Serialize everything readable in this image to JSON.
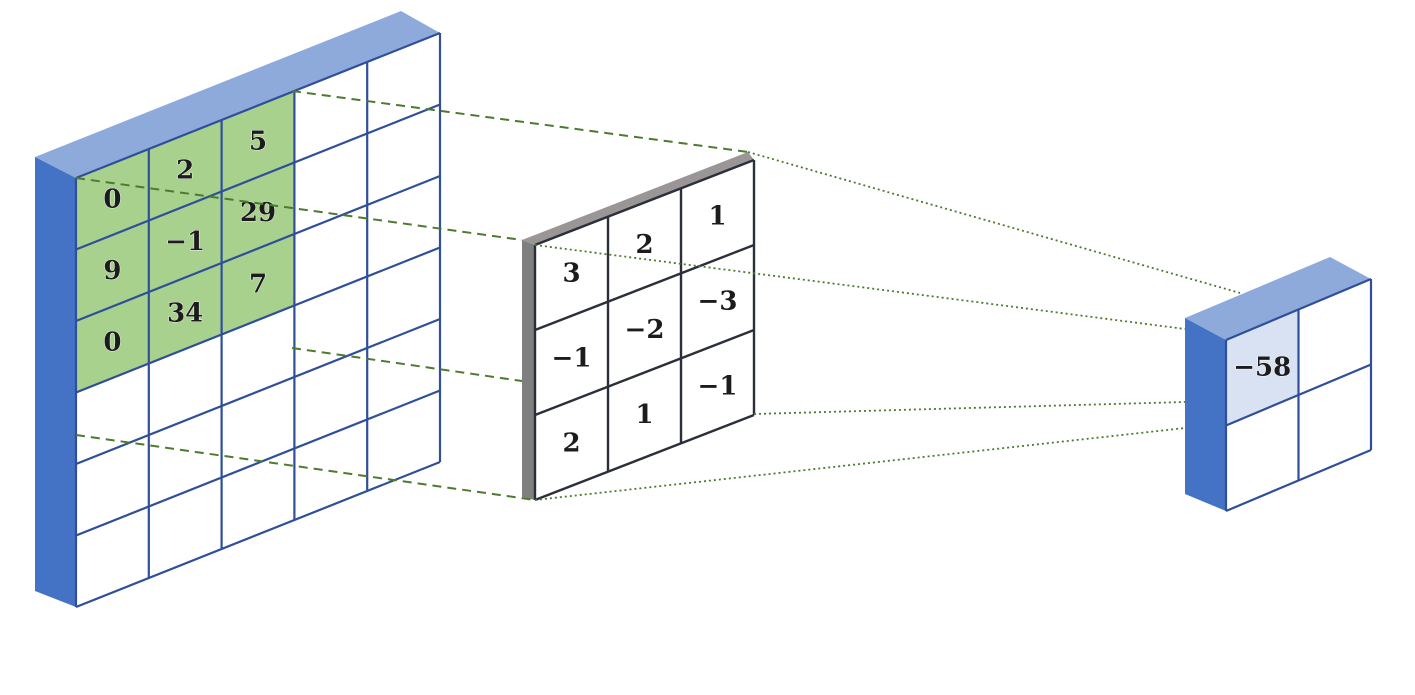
{
  "input_matrix": {
    "rows": 6,
    "cols": 5,
    "highlight_rows": 3,
    "highlight_cols": 3,
    "highlight_values": [
      [
        "0",
        "2",
        "5"
      ],
      [
        "9",
        "−1",
        "29"
      ],
      [
        "0",
        "34",
        "7"
      ]
    ],
    "highlight_color": "#a9d18e",
    "frame_color": "#4472c4",
    "top_color": "#8eaadb"
  },
  "kernel": {
    "values": [
      [
        "3",
        "2",
        "1"
      ],
      [
        "−1",
        "−2",
        "−3"
      ],
      [
        "2",
        "1",
        "−1"
      ]
    ],
    "edge_color": "#808080"
  },
  "output_matrix": {
    "rows": 2,
    "cols": 2,
    "value": "−58",
    "highlight_color": "#d9e2f3",
    "frame_color": "#4472c4",
    "top_color": "#8eaadb"
  },
  "connector_color": "#548235"
}
